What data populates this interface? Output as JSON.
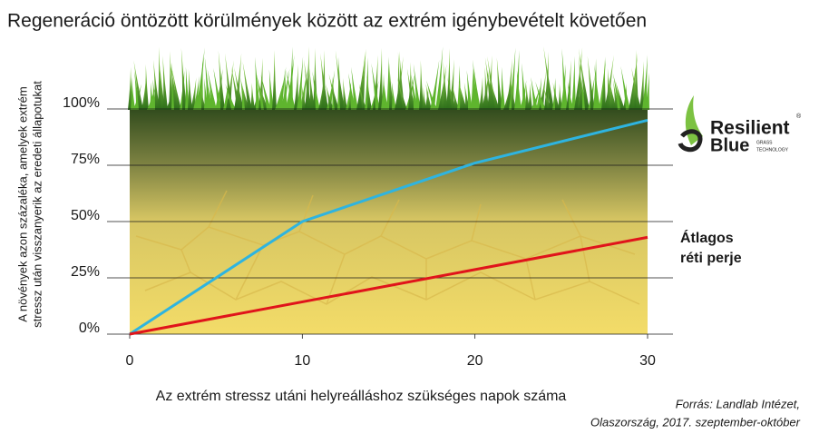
{
  "chart_data": {
    "type": "line",
    "title": "Regeneráció öntözött körülmények között az extrém igénybevételt követően",
    "y_label": [
      "A növények azon százaléka, amelyek extrém",
      "stressz után visszanyerik az eredeti állapotukat"
    ],
    "x_label": "Az extrém stressz utáni helyreálláshoz szükséges napok száma",
    "xlim": [
      0,
      30
    ],
    "xticks": [
      0,
      10,
      20,
      30
    ],
    "ylim": [
      0,
      100
    ],
    "yticks": [
      {
        "value": 0,
        "label": "0%"
      },
      {
        "value": 25,
        "label": "25%"
      },
      {
        "value": 50,
        "label": "50%"
      },
      {
        "value": 75,
        "label": "75%"
      },
      {
        "value": 100,
        "label": "100%"
      }
    ],
    "grid": true,
    "series": [
      {
        "color": "#2eb4e0",
        "x": [
          0,
          10,
          20,
          30
        ],
        "values": [
          0,
          50,
          76,
          95
        ]
      },
      {
        "name": "Átlagos réti perje",
        "color": "#e0141b",
        "x": [
          0,
          30
        ],
        "values": [
          0,
          43
        ]
      }
    ],
    "logo": {
      "line1": "Resilient",
      "line2": "Blue",
      "tagline1": "GRASS",
      "tagline2": "TECHNOLOGY",
      "mark": "®"
    },
    "source": [
      "Forrás: Landlab Intézet,",
      "Olaszország, 2017. szeptember-október"
    ]
  }
}
